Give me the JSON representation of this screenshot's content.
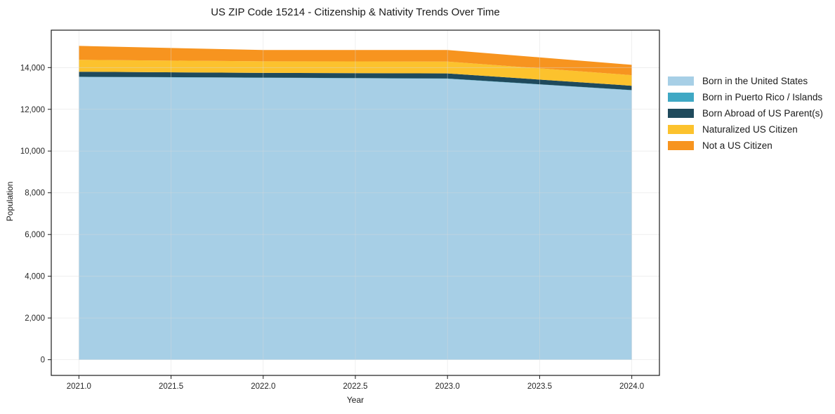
{
  "chart_data": {
    "type": "area",
    "stacked": true,
    "title": "US ZIP Code 15214 - Citizenship & Nativity Trends Over Time",
    "xlabel": "Year",
    "ylabel": "Population",
    "x": [
      2021,
      2022,
      2023,
      2024
    ],
    "series": [
      {
        "name": "Born in the United States",
        "color": "#a7cfe6",
        "values": [
          13550,
          13510,
          13465,
          12910
        ]
      },
      {
        "name": "Born in Puerto Rico / Islands",
        "color": "#3fa8c4",
        "values": [
          10,
          10,
          10,
          10
        ]
      },
      {
        "name": "Born Abroad of US Parent(s)",
        "color": "#1f4a5c",
        "values": [
          240,
          225,
          245,
          210
        ]
      },
      {
        "name": "Naturalized US Citizen",
        "color": "#fcc22d",
        "values": [
          570,
          555,
          570,
          505
        ]
      },
      {
        "name": "Not a US Citizen",
        "color": "#f7941f",
        "values": [
          670,
          540,
          555,
          495
        ]
      }
    ],
    "totals": [
      15040,
      14840,
      14845,
      14130
    ],
    "xlim": [
      2020.85,
      2024.15
    ],
    "ylim": [
      -752,
      15792
    ],
    "xticks": [
      2021.0,
      2021.5,
      2022.0,
      2022.5,
      2023.0,
      2023.5,
      2024.0
    ],
    "xtick_labels": [
      "2021.0",
      "2021.5",
      "2022.0",
      "2022.5",
      "2023.0",
      "2023.5",
      "2024.0"
    ],
    "yticks": [
      0,
      2000,
      4000,
      6000,
      8000,
      10000,
      12000,
      14000
    ],
    "ytick_labels": [
      "0",
      "2,000",
      "4,000",
      "6,000",
      "8,000",
      "10,000",
      "12,000",
      "14,000"
    ],
    "grid": true,
    "grid_color": "#d9d9d9",
    "grid_opacity": 0.5,
    "axis_color": "#1a1a1a",
    "legend_position": "right"
  }
}
